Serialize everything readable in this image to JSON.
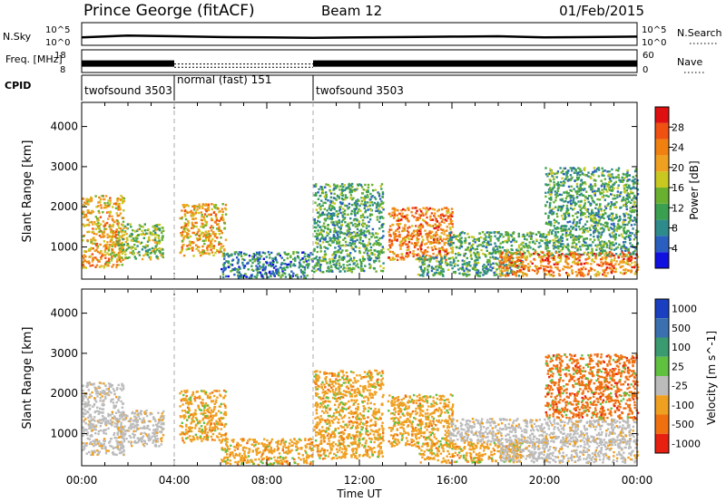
{
  "header": {
    "station": "Prince George (fitACF)",
    "beam": "Beam 12",
    "date": "01/Feb/2015"
  },
  "colors": {
    "axis": "#000000",
    "scan_boundary": "#aaaaaa",
    "ground_scatter": "#bbbbbb"
  },
  "chart_data": [
    {
      "type": "line",
      "panel": "noise",
      "ylabel_left": "N.Sky",
      "ylabel_right": "N.Search",
      "left_ticks": [
        "10^5",
        "10^0"
      ],
      "right_ticks": [
        "10^5",
        "10^0"
      ],
      "right_legend_style": "dotted",
      "ylim_log10": [
        0,
        5
      ],
      "x": [
        0,
        2,
        4,
        6,
        8,
        10,
        12,
        14,
        16,
        18,
        20,
        22,
        24
      ],
      "series": [
        {
          "style": "solid",
          "values_log10": [
            1.6,
            2.1,
            1.9,
            1.7,
            1.6,
            1.5,
            1.6,
            1.7,
            1.8,
            1.9,
            1.6,
            1.7,
            1.8
          ]
        }
      ]
    },
    {
      "type": "line",
      "panel": "frequency",
      "ylabel_left": "Freq. [MHz]",
      "ylabel_right": "Nave",
      "left_ticks": [
        "18",
        "8"
      ],
      "right_ticks": [
        "60",
        "0"
      ],
      "ylim": [
        8,
        18
      ],
      "x": [
        0,
        4,
        4,
        10,
        10,
        24
      ],
      "series": [
        {
          "style": "band",
          "values": [
            12,
            12,
            9.8,
            9.8,
            12,
            12
          ]
        }
      ]
    },
    {
      "type": "table",
      "panel": "cpid",
      "label": "CPID",
      "segments": [
        {
          "start": 0,
          "end": 4,
          "label": "twofsound 3503"
        },
        {
          "start": 4,
          "end": 10,
          "label": "normal (fast) 151"
        },
        {
          "start": 10,
          "end": 24,
          "label": "twofsound 3503"
        }
      ]
    },
    {
      "type": "heatmap",
      "panel": "power",
      "ylabel": "Slant Range [km]",
      "ylim": [
        200,
        4600
      ],
      "y_ticks": [
        1000,
        2000,
        3000,
        4000
      ],
      "xlim": [
        0,
        24
      ],
      "colorbar": {
        "label": "Power [dB]",
        "ticks": [
          4,
          8,
          12,
          16,
          20,
          24,
          28
        ],
        "range": [
          0,
          32
        ],
        "colors": [
          "#1010e0",
          "#2a5fc0",
          "#2e8b8b",
          "#3aa050",
          "#6ab030",
          "#c8c820",
          "#f0a020",
          "#f08010",
          "#f05010",
          "#e01010"
        ]
      },
      "echo_regions": [
        {
          "t0": 0.0,
          "t1": 1.8,
          "r0": 500,
          "r1": 2300,
          "level": 20
        },
        {
          "t0": 1.5,
          "t1": 3.5,
          "r0": 700,
          "r1": 1600,
          "level": 14
        },
        {
          "t0": 4.2,
          "t1": 6.2,
          "r0": 800,
          "r1": 2100,
          "level": 22
        },
        {
          "t0": 6.0,
          "t1": 10.0,
          "r0": 250,
          "r1": 900,
          "level": 8
        },
        {
          "t0": 10.0,
          "t1": 13.0,
          "r0": 400,
          "r1": 2600,
          "level": 12
        },
        {
          "t0": 13.2,
          "t1": 16.0,
          "r0": 700,
          "r1": 2000,
          "level": 24
        },
        {
          "t0": 14.5,
          "t1": 19.0,
          "r0": 300,
          "r1": 800,
          "level": 10
        },
        {
          "t0": 15.8,
          "t1": 24.0,
          "r0": 800,
          "r1": 1400,
          "level": 12
        },
        {
          "t0": 18.0,
          "t1": 24.0,
          "r0": 300,
          "r1": 900,
          "level": 26
        },
        {
          "t0": 20.0,
          "t1": 24.0,
          "r0": 1400,
          "r1": 3000,
          "level": 12
        }
      ]
    },
    {
      "type": "heatmap",
      "panel": "velocity",
      "ylabel": "Slant Range [km]",
      "ylim": [
        200,
        4600
      ],
      "y_ticks": [
        1000,
        2000,
        3000,
        4000
      ],
      "xlim": [
        0,
        24
      ],
      "x_ticks": [
        "00:00",
        "04:00",
        "08:00",
        "12:00",
        "16:00",
        "20:00",
        "00:00"
      ],
      "xlabel": "Time UT",
      "colorbar": {
        "label": "Velocity [m s^-1]",
        "ticks": [
          "1000",
          "500",
          "100",
          "25",
          "-25",
          "-100",
          "-500",
          "-1000"
        ],
        "colors": [
          "#1a3fc0",
          "#3a70b0",
          "#3a9a70",
          "#60c040",
          "#bbbbbb",
          "#f0a020",
          "#f07010",
          "#e82010"
        ]
      },
      "echo_regions": [
        {
          "t0": 0.0,
          "t1": 1.8,
          "r0": 500,
          "r1": 2300,
          "class": "ground"
        },
        {
          "t0": 1.5,
          "t1": 3.5,
          "r0": 700,
          "r1": 1600,
          "class": "ground"
        },
        {
          "t0": 4.2,
          "t1": 6.2,
          "r0": 800,
          "r1": 2100,
          "class": "-100"
        },
        {
          "t0": 6.0,
          "t1": 10.0,
          "r0": 250,
          "r1": 900,
          "class": "-100"
        },
        {
          "t0": 10.0,
          "t1": 13.0,
          "r0": 400,
          "r1": 2600,
          "class": "-100"
        },
        {
          "t0": 13.2,
          "t1": 16.0,
          "r0": 700,
          "r1": 2000,
          "class": "-100"
        },
        {
          "t0": 14.5,
          "t1": 19.0,
          "r0": 300,
          "r1": 800,
          "class": "-100"
        },
        {
          "t0": 15.8,
          "t1": 24.0,
          "r0": 800,
          "r1": 1400,
          "class": "ground"
        },
        {
          "t0": 18.0,
          "t1": 24.0,
          "r0": 300,
          "r1": 900,
          "class": "ground"
        },
        {
          "t0": 20.0,
          "t1": 24.0,
          "r0": 1400,
          "r1": 3000,
          "class": "-500"
        }
      ]
    }
  ]
}
